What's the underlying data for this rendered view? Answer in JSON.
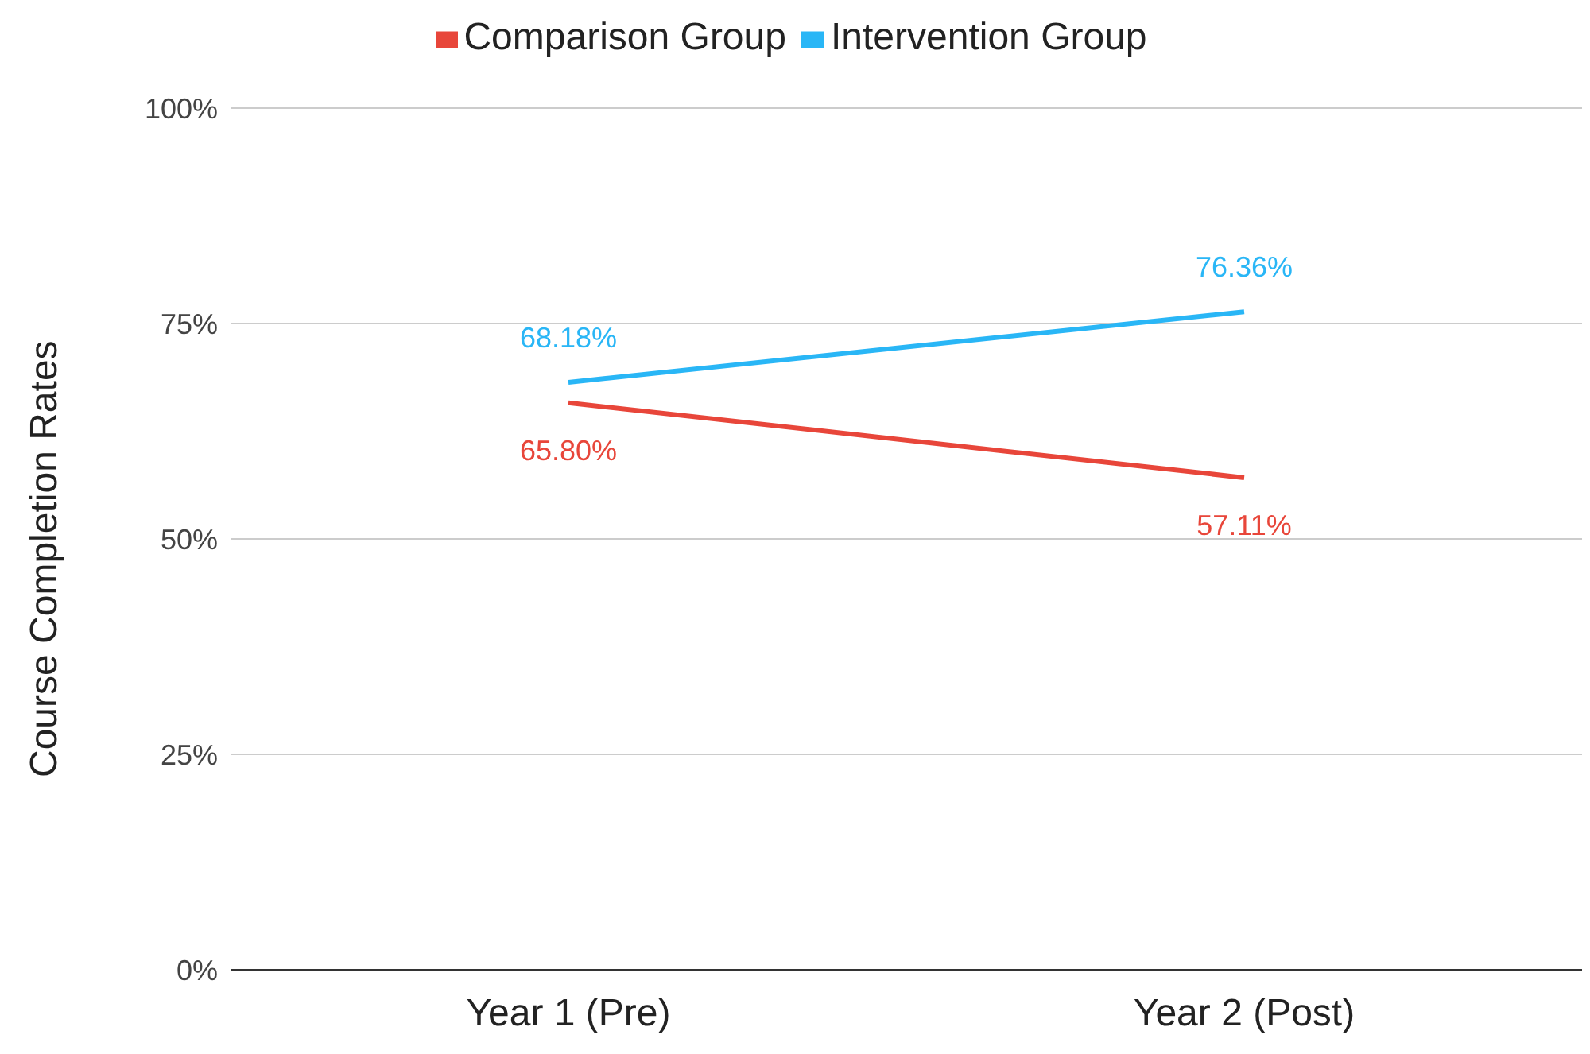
{
  "chart_data": {
    "type": "line",
    "ylabel": "Course Completion Rates",
    "categories": [
      "Year 1 (Pre)",
      "Year 2 (Post)"
    ],
    "series": [
      {
        "name": "Comparison Group",
        "color": "#e8463a",
        "values": [
          65.8,
          57.11
        ],
        "value_labels": [
          "65.80%",
          "57.11%"
        ]
      },
      {
        "name": "Intervention Group",
        "color": "#29b6f6",
        "values": [
          68.18,
          76.36
        ],
        "value_labels": [
          "68.18%",
          "76.36%"
        ]
      }
    ],
    "ylim": [
      0,
      100
    ],
    "yticks": [
      {
        "value": 0,
        "label": "0%"
      },
      {
        "value": 25,
        "label": "25%"
      },
      {
        "value": 50,
        "label": "50%"
      },
      {
        "value": 75,
        "label": "75%"
      },
      {
        "value": 100,
        "label": "100%"
      }
    ],
    "grid": "y",
    "legend": "top",
    "marker": "none",
    "line_style": "solid"
  }
}
